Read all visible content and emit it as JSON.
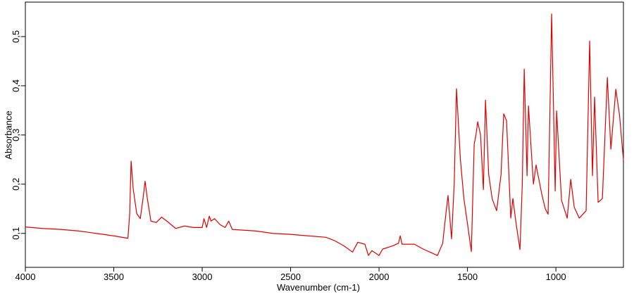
{
  "chart_data": {
    "type": "line",
    "x_label": "Wavenumber (cm-1)",
    "y_label": "Absorbance",
    "color": "#e00000",
    "xlim": [
      4000,
      618
    ],
    "ylim": [
      0.031,
      0.57
    ],
    "xticks": [
      4000,
      3500,
      3000,
      2500,
      2000,
      1500,
      1000
    ],
    "yticks": [
      {
        "value": 0.1,
        "label": "0,1"
      },
      {
        "value": 0.2,
        "label": "0,2"
      },
      {
        "value": 0.3,
        "label": "0,3"
      },
      {
        "value": 0.4,
        "label": "0,4"
      },
      {
        "value": 0.5,
        "label": "0,5"
      }
    ],
    "x": [
      4000,
      3900,
      3800,
      3700,
      3600,
      3500,
      3420,
      3410,
      3402,
      3390,
      3370,
      3350,
      3335,
      3323,
      3310,
      3290,
      3260,
      3230,
      3200,
      3150,
      3100,
      3050,
      3000,
      2990,
      2975,
      2960,
      2950,
      2930,
      2900,
      2870,
      2850,
      2830,
      2700,
      2600,
      2500,
      2400,
      2300,
      2250,
      2200,
      2150,
      2120,
      2080,
      2060,
      2040,
      2000,
      1980,
      1920,
      1890,
      1880,
      1870,
      1800,
      1750,
      1700,
      1670,
      1640,
      1625,
      1610,
      1590,
      1575,
      1562,
      1540,
      1520,
      1500,
      1478,
      1462,
      1452,
      1442,
      1426,
      1410,
      1398,
      1380,
      1360,
      1335,
      1310,
      1295,
      1279,
      1255,
      1243,
      1225,
      1203,
      1190,
      1179,
      1163,
      1155,
      1127,
      1112,
      1080,
      1060,
      1044,
      1024,
      1004,
      996,
      968,
      936,
      916,
      896,
      868,
      829,
      809,
      793,
      781,
      761,
      737,
      709,
      689,
      661,
      640,
      618
    ],
    "values": [
      0.113,
      0.11,
      0.108,
      0.105,
      0.1,
      0.095,
      0.09,
      0.14,
      0.247,
      0.19,
      0.14,
      0.13,
      0.17,
      0.206,
      0.17,
      0.125,
      0.122,
      0.133,
      0.125,
      0.11,
      0.115,
      0.112,
      0.112,
      0.13,
      0.112,
      0.135,
      0.125,
      0.13,
      0.118,
      0.112,
      0.125,
      0.108,
      0.105,
      0.1,
      0.098,
      0.095,
      0.092,
      0.085,
      0.075,
      0.062,
      0.082,
      0.078,
      0.055,
      0.065,
      0.055,
      0.068,
      0.075,
      0.08,
      0.095,
      0.078,
      0.078,
      0.068,
      0.06,
      0.055,
      0.08,
      0.13,
      0.177,
      0.089,
      0.2,
      0.394,
      0.25,
      0.17,
      0.12,
      0.063,
      0.281,
      0.3,
      0.327,
      0.3,
      0.189,
      0.371,
      0.22,
      0.17,
      0.146,
      0.22,
      0.343,
      0.329,
      0.131,
      0.171,
      0.12,
      0.067,
      0.2,
      0.434,
      0.217,
      0.359,
      0.2,
      0.239,
      0.18,
      0.15,
      0.139,
      0.546,
      0.186,
      0.349,
      0.167,
      0.131,
      0.21,
      0.153,
      0.131,
      0.146,
      0.491,
      0.217,
      0.377,
      0.163,
      0.171,
      0.417,
      0.271,
      0.393,
      0.34,
      0.249
    ]
  }
}
